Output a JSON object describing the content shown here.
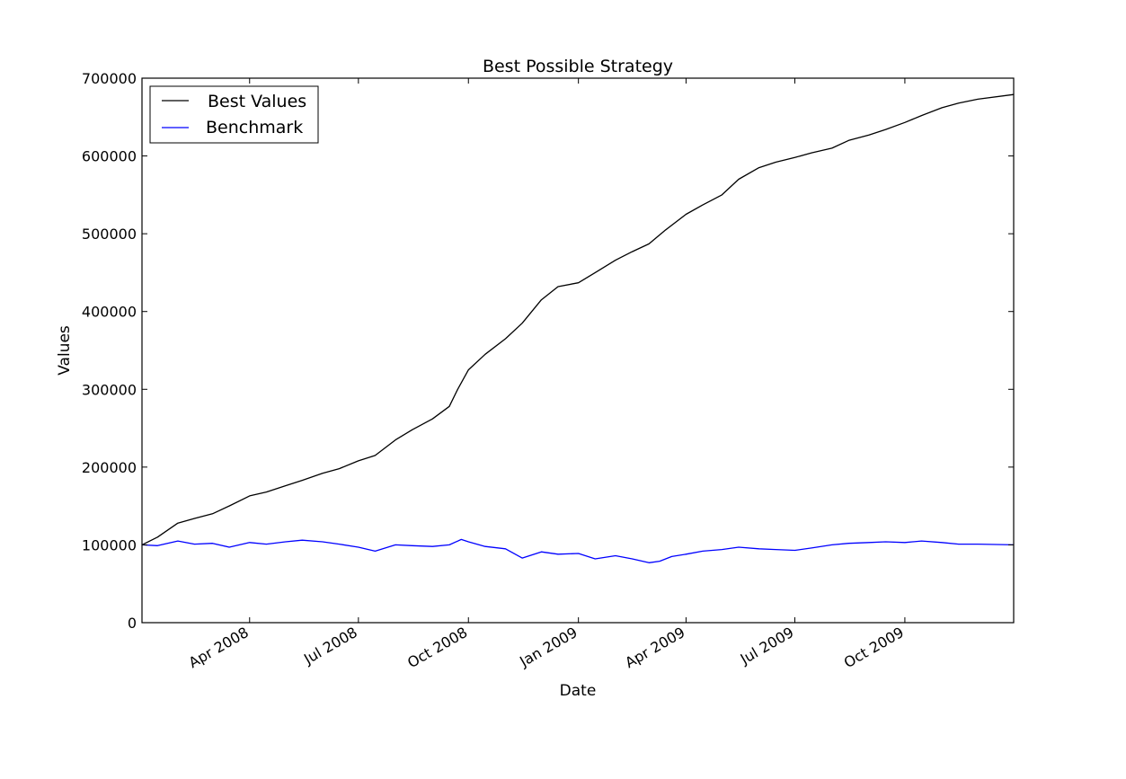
{
  "chart_data": {
    "type": "line",
    "title": "Best Possible Strategy",
    "xlabel": "Date",
    "ylabel": "Values",
    "x_range": [
      "2008-01-02",
      "2009-12-31"
    ],
    "ylim": [
      0,
      700000
    ],
    "y_ticks": [
      0,
      100000,
      200000,
      300000,
      400000,
      500000,
      600000,
      700000
    ],
    "y_tick_labels": [
      "0",
      "100000",
      "200000",
      "300000",
      "400000",
      "500000",
      "600000",
      "700000"
    ],
    "x_ticks": [
      "2008-04-01",
      "2008-07-01",
      "2008-10-01",
      "2009-01-01",
      "2009-04-01",
      "2009-07-01",
      "2009-10-01"
    ],
    "x_tick_labels": [
      "Apr 2008",
      "Jul 2008",
      "Oct 2008",
      "Jan 2009",
      "Apr 2009",
      "Jul 2009",
      "Oct 2009"
    ],
    "grid": false,
    "legend_position": "top-left",
    "series": [
      {
        "name": "Best Values",
        "color": "#000000",
        "points": [
          [
            "2008-01-02",
            100000
          ],
          [
            "2008-01-15",
            110000
          ],
          [
            "2008-02-01",
            128000
          ],
          [
            "2008-02-15",
            134000
          ],
          [
            "2008-03-01",
            140000
          ],
          [
            "2008-03-15",
            150000
          ],
          [
            "2008-04-01",
            163000
          ],
          [
            "2008-04-15",
            168000
          ],
          [
            "2008-05-01",
            176000
          ],
          [
            "2008-05-15",
            183000
          ],
          [
            "2008-06-01",
            192000
          ],
          [
            "2008-06-15",
            198000
          ],
          [
            "2008-07-01",
            208000
          ],
          [
            "2008-07-15",
            215000
          ],
          [
            "2008-08-01",
            235000
          ],
          [
            "2008-08-15",
            248000
          ],
          [
            "2008-09-01",
            262000
          ],
          [
            "2008-09-15",
            278000
          ],
          [
            "2008-09-22",
            300000
          ],
          [
            "2008-10-01",
            325000
          ],
          [
            "2008-10-15",
            345000
          ],
          [
            "2008-11-01",
            365000
          ],
          [
            "2008-11-15",
            385000
          ],
          [
            "2008-12-01",
            415000
          ],
          [
            "2008-12-15",
            432000
          ],
          [
            "2009-01-01",
            437000
          ],
          [
            "2009-01-15",
            450000
          ],
          [
            "2009-02-01",
            466000
          ],
          [
            "2009-02-15",
            477000
          ],
          [
            "2009-03-01",
            487000
          ],
          [
            "2009-03-15",
            505000
          ],
          [
            "2009-04-01",
            525000
          ],
          [
            "2009-04-15",
            537000
          ],
          [
            "2009-05-01",
            550000
          ],
          [
            "2009-05-15",
            570000
          ],
          [
            "2009-06-01",
            585000
          ],
          [
            "2009-06-15",
            592000
          ],
          [
            "2009-07-01",
            598000
          ],
          [
            "2009-07-15",
            604000
          ],
          [
            "2009-08-01",
            610000
          ],
          [
            "2009-08-15",
            620000
          ],
          [
            "2009-09-01",
            627000
          ],
          [
            "2009-09-15",
            634000
          ],
          [
            "2009-10-01",
            643000
          ],
          [
            "2009-10-15",
            652000
          ],
          [
            "2009-11-01",
            662000
          ],
          [
            "2009-11-15",
            668000
          ],
          [
            "2009-12-01",
            673000
          ],
          [
            "2009-12-31",
            679000
          ]
        ]
      },
      {
        "name": "Benchmark",
        "color": "#0000ff",
        "points": [
          [
            "2008-01-02",
            100000
          ],
          [
            "2008-01-15",
            99000
          ],
          [
            "2008-02-01",
            105000
          ],
          [
            "2008-02-15",
            101000
          ],
          [
            "2008-03-01",
            102000
          ],
          [
            "2008-03-15",
            97000
          ],
          [
            "2008-04-01",
            103000
          ],
          [
            "2008-04-15",
            101000
          ],
          [
            "2008-05-01",
            104000
          ],
          [
            "2008-05-15",
            106000
          ],
          [
            "2008-06-01",
            104000
          ],
          [
            "2008-06-15",
            101000
          ],
          [
            "2008-07-01",
            97000
          ],
          [
            "2008-07-15",
            92000
          ],
          [
            "2008-08-01",
            100000
          ],
          [
            "2008-08-15",
            99000
          ],
          [
            "2008-09-01",
            98000
          ],
          [
            "2008-09-15",
            100000
          ],
          [
            "2008-09-25",
            107000
          ],
          [
            "2008-10-01",
            104000
          ],
          [
            "2008-10-15",
            98000
          ],
          [
            "2008-11-01",
            95000
          ],
          [
            "2008-11-15",
            83000
          ],
          [
            "2008-12-01",
            91000
          ],
          [
            "2008-12-15",
            88000
          ],
          [
            "2009-01-01",
            89000
          ],
          [
            "2009-01-15",
            82000
          ],
          [
            "2009-02-01",
            86000
          ],
          [
            "2009-02-15",
            82000
          ],
          [
            "2009-03-01",
            77000
          ],
          [
            "2009-03-10",
            79000
          ],
          [
            "2009-03-20",
            85000
          ],
          [
            "2009-04-01",
            88000
          ],
          [
            "2009-04-15",
            92000
          ],
          [
            "2009-05-01",
            94000
          ],
          [
            "2009-05-15",
            97000
          ],
          [
            "2009-06-01",
            95000
          ],
          [
            "2009-06-15",
            94000
          ],
          [
            "2009-07-01",
            93000
          ],
          [
            "2009-07-15",
            96000
          ],
          [
            "2009-08-01",
            100000
          ],
          [
            "2009-08-15",
            102000
          ],
          [
            "2009-09-01",
            103000
          ],
          [
            "2009-09-15",
            104000
          ],
          [
            "2009-10-01",
            103000
          ],
          [
            "2009-10-15",
            105000
          ],
          [
            "2009-11-01",
            103000
          ],
          [
            "2009-11-15",
            101000
          ],
          [
            "2009-12-01",
            101000
          ],
          [
            "2009-12-31",
            100000
          ]
        ]
      }
    ]
  }
}
